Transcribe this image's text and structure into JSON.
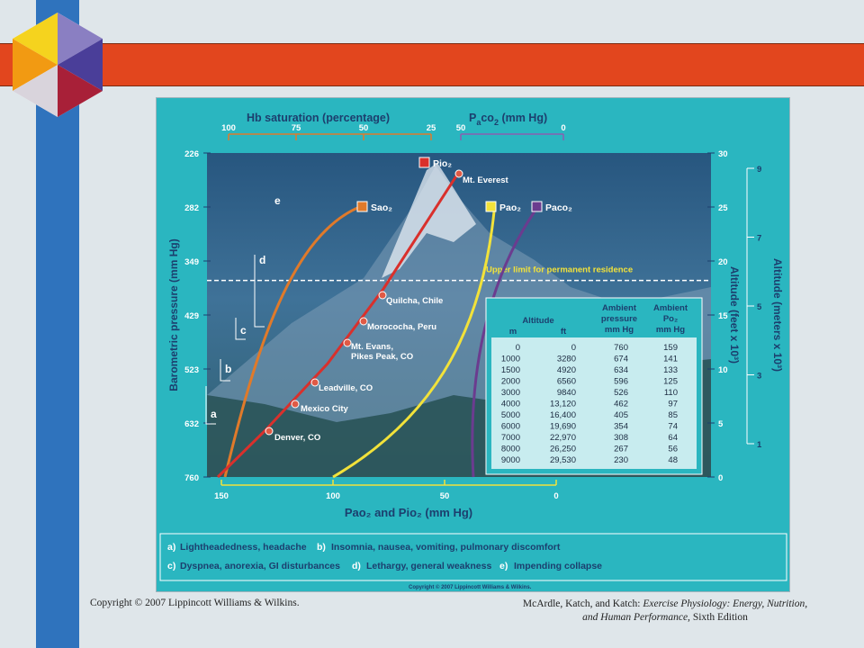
{
  "chart_data": {
    "type": "line",
    "top_axes": {
      "hb_saturation": {
        "label": "Hb saturation (percentage)",
        "ticks": [
          "100",
          "75",
          "50",
          "25"
        ]
      },
      "paco2": {
        "label_main": "P",
        "label_sub_a": "a",
        "label_rest": "co",
        "label_sub2": "2",
        "label_unit": " (mm Hg)",
        "ticks": [
          "50",
          "0"
        ]
      }
    },
    "bottom_axis": {
      "ticks": [
        "150",
        "100",
        "50",
        "0"
      ],
      "label": "Pao₂ and Pio₂ (mm Hg)"
    },
    "left_axis": {
      "label": "Barometric pressure (mm Hg)",
      "ticks": [
        "226",
        "282",
        "349",
        "429",
        "523",
        "632",
        "760"
      ]
    },
    "right_axis_feet": {
      "label": "Altitude (feet x 10³)",
      "ticks": [
        "30",
        "25",
        "20",
        "15",
        "10",
        "5",
        "0"
      ]
    },
    "right_axis_meters": {
      "label": "Altitude (meters x 10³)",
      "ticks": [
        "9",
        "7",
        "5",
        "3",
        "1"
      ]
    },
    "series": [
      {
        "name": "Pio₂",
        "color": "#d9302c"
      },
      {
        "name": "Sao₂",
        "color": "#e07a2a"
      },
      {
        "name": "Pao₂",
        "color": "#f2e23a"
      },
      {
        "name": "Paco₂",
        "color": "#6b3c8f"
      }
    ],
    "locations": [
      {
        "name": "Mt. Everest",
        "feet_x1000": 29.0
      },
      {
        "name": "Quilcha, Chile",
        "feet_x1000": 17.5
      },
      {
        "name": "Morococha, Peru",
        "feet_x1000": 14.9
      },
      {
        "name": "Mt. Evans,",
        "name2": "Pikes Peak, CO",
        "feet_x1000": 12.6
      },
      {
        "name": "Leadville, CO",
        "feet_x1000": 9.0
      },
      {
        "name": "Mexico City",
        "feet_x1000": 6.8
      },
      {
        "name": "Denver, CO",
        "feet_x1000": 4.4
      }
    ],
    "limit_line": {
      "label": "Upper limit for permanent residence",
      "feet_x1000": 18.2
    },
    "zone_letters": [
      "e",
      "d",
      "c",
      "b",
      "a"
    ],
    "table": {
      "headers": {
        "altitude": "Altitude",
        "m": "m",
        "ft": "ft",
        "ambient_pressure_1": "Ambient",
        "ambient_pressure_2": "pressure",
        "ambient_pressure_3": "mm Hg",
        "ambient_po2_1": "Ambient",
        "ambient_po2_2": "Po₂",
        "ambient_po2_3": "mm Hg"
      },
      "rows": [
        [
          "0",
          "0",
          "760",
          "159"
        ],
        [
          "1000",
          "3280",
          "674",
          "141"
        ],
        [
          "1500",
          "4920",
          "634",
          "133"
        ],
        [
          "2000",
          "6560",
          "596",
          "125"
        ],
        [
          "3000",
          "9840",
          "526",
          "110"
        ],
        [
          "4000",
          "13,120",
          "462",
          "97"
        ],
        [
          "5000",
          "16,400",
          "405",
          "85"
        ],
        [
          "6000",
          "19,690",
          "354",
          "74"
        ],
        [
          "7000",
          "22,970",
          "308",
          "64"
        ],
        [
          "8000",
          "26,250",
          "267",
          "56"
        ],
        [
          "9000",
          "29,530",
          "230",
          "48"
        ]
      ]
    }
  },
  "legend": {
    "a_letter": "a)",
    "a_text": "Lightheadedness, headache",
    "b_letter": "b)",
    "b_text": "Insomnia, nausea, vomiting, pulmonary discomfort",
    "c_letter": "c)",
    "c_text": "Dyspnea, anorexia, GI disturbances",
    "d_letter": "d)",
    "d_text": "Lethargy, general weakness",
    "e_letter": "e)",
    "e_text": "Impending collapse"
  },
  "figure_copyright": "Copyright © 2007 Lippincott Williams & Wilkins.",
  "footer": {
    "left": "Copyright © 2007 Lippincott Williams & Wilkins.",
    "right_prefix": "McArdle, Katch, and Katch: ",
    "right_title": "Exercise Physiology: Energy, Nutrition, and Human Performance,",
    "right_suffix": " Sixth Edition"
  }
}
